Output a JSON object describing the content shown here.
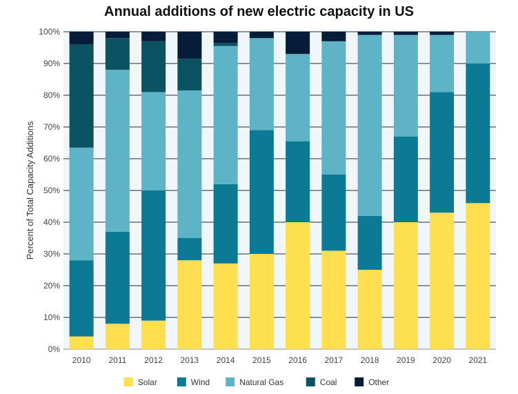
{
  "chart_data": {
    "type": "bar",
    "stacked": true,
    "title": "Annual additions of new electric capacity in US",
    "ylabel": "Percent of Total Capacity Additions",
    "xlabel": "",
    "ylim": [
      0,
      100
    ],
    "yticks": [
      "0%",
      "10%",
      "20%",
      "30%",
      "40%",
      "50%",
      "60%",
      "70%",
      "80%",
      "90%",
      "100%"
    ],
    "categories": [
      "2010",
      "2011",
      "2012",
      "2013",
      "2014",
      "2015",
      "2016",
      "2017",
      "2018",
      "2019",
      "2020",
      "2021"
    ],
    "series": [
      {
        "name": "Solar",
        "color": "#FDDF4F",
        "values": [
          4,
          8,
          9,
          28,
          27,
          30,
          40,
          31,
          25,
          40,
          43,
          46
        ]
      },
      {
        "name": "Wind",
        "color": "#0C7A94",
        "values": [
          24,
          29,
          41,
          7,
          25,
          39,
          25.5,
          24,
          17,
          27,
          38,
          44
        ]
      },
      {
        "name": "Natural Gas",
        "color": "#5FB3C7",
        "values": [
          35.5,
          51,
          31,
          46.5,
          43.5,
          29,
          27.5,
          42,
          57,
          32,
          18,
          10
        ]
      },
      {
        "name": "Coal",
        "color": "#0B5363",
        "values": [
          32.5,
          10,
          16,
          10,
          1,
          0,
          0,
          0,
          0,
          0,
          0,
          0
        ]
      },
      {
        "name": "Other",
        "color": "#061C38",
        "values": [
          4,
          2,
          3,
          8.5,
          3.5,
          2,
          7,
          3,
          1,
          1,
          1,
          0
        ]
      }
    ],
    "grid": true,
    "legend": "bottom"
  }
}
